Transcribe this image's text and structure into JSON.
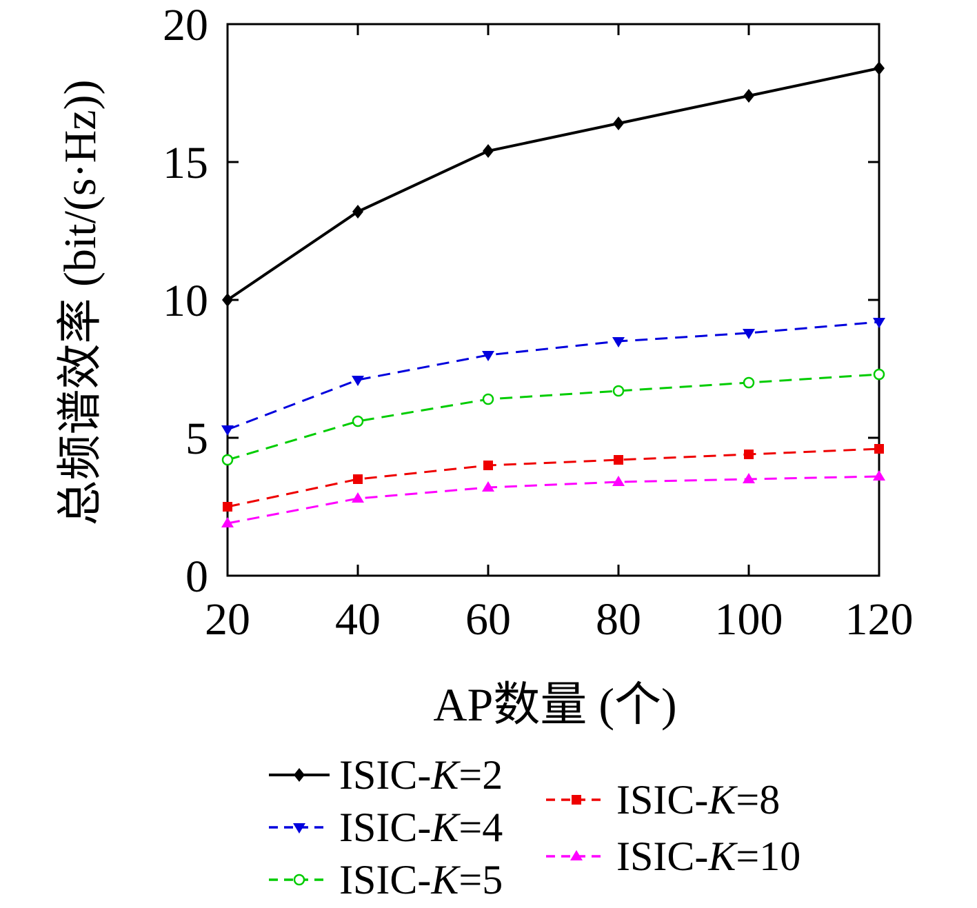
{
  "chart_data": {
    "type": "line",
    "xlabel": "AP数量 (个)",
    "ylabel": "总频谱效率 (bit/(s·Hz))",
    "x": [
      20,
      40,
      60,
      80,
      100,
      120
    ],
    "xlim": [
      20,
      120
    ],
    "ylim": [
      0,
      20
    ],
    "xticks": [
      20,
      40,
      60,
      80,
      100,
      120
    ],
    "yticks": [
      0,
      5,
      10,
      15,
      20
    ],
    "grid": false,
    "legend_position": "bottom",
    "series": [
      {
        "name": "ISIC-K=2",
        "color": "#000000",
        "line": "solid",
        "marker": "diamond",
        "values": [
          10.0,
          13.2,
          15.4,
          16.4,
          17.4,
          18.4
        ]
      },
      {
        "name": "ISIC-K=4",
        "color": "#0000dd",
        "line": "dashed",
        "marker": "triangle-down",
        "values": [
          5.3,
          7.1,
          8.0,
          8.5,
          8.8,
          9.2
        ]
      },
      {
        "name": "ISIC-K=5",
        "color": "#00cc00",
        "line": "dashed",
        "marker": "circle-open",
        "values": [
          4.2,
          5.6,
          6.4,
          6.7,
          7.0,
          7.3
        ]
      },
      {
        "name": "ISIC-K=8",
        "color": "#ee0000",
        "line": "dashed",
        "marker": "square",
        "values": [
          2.5,
          3.5,
          4.0,
          4.2,
          4.4,
          4.6
        ]
      },
      {
        "name": "ISIC-K=10",
        "color": "#ff00ff",
        "line": "dashed",
        "marker": "triangle-up",
        "values": [
          1.9,
          2.8,
          3.2,
          3.4,
          3.5,
          3.6
        ]
      }
    ]
  }
}
